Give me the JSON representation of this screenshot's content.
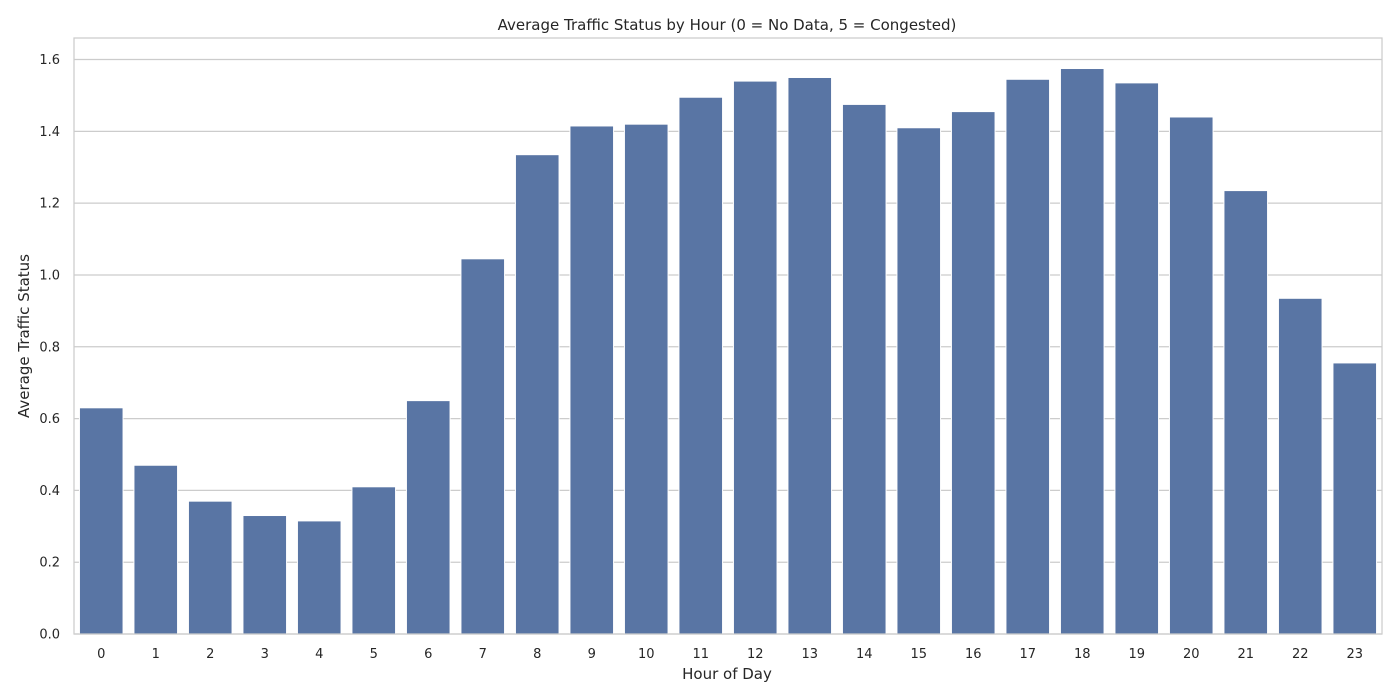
{
  "chart_data": {
    "type": "bar",
    "title": "Average Traffic Status by Hour (0 = No Data, 5 = Congested)",
    "xlabel": "Hour of Day",
    "ylabel": "Average Traffic Status",
    "categories": [
      "0",
      "1",
      "2",
      "3",
      "4",
      "5",
      "6",
      "7",
      "8",
      "9",
      "10",
      "11",
      "12",
      "13",
      "14",
      "15",
      "16",
      "17",
      "18",
      "19",
      "20",
      "21",
      "22",
      "23"
    ],
    "values": [
      0.63,
      0.47,
      0.37,
      0.33,
      0.315,
      0.41,
      0.65,
      1.045,
      1.335,
      1.415,
      1.42,
      1.495,
      1.54,
      1.55,
      1.475,
      1.41,
      1.455,
      1.545,
      1.575,
      1.535,
      1.44,
      1.235,
      0.935,
      0.755
    ],
    "ylim": [
      0,
      1.66
    ],
    "yticks": [
      "0.0",
      "0.2",
      "0.4",
      "0.6",
      "0.8",
      "1.0",
      "1.2",
      "1.4",
      "1.6"
    ],
    "grid": "y",
    "colors": {
      "bar": "#5975a4",
      "bar_edge": "#ffffff",
      "grid": "#cccccc",
      "spine": "#cccccc",
      "background": "#ffffff",
      "text": "#262626"
    }
  }
}
